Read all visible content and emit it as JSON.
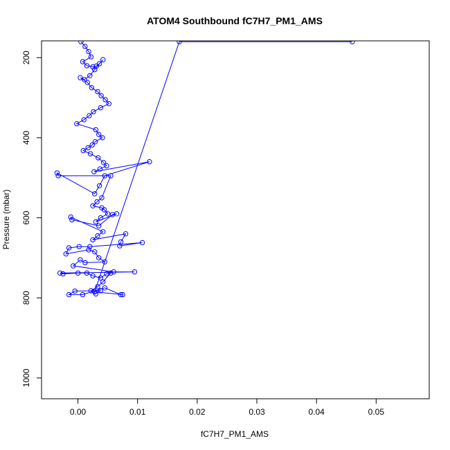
{
  "chart_data": {
    "type": "scatter",
    "title": "ATOM4 Southbound fC7H7_PM1_AMS",
    "xlabel": "fC7H7_PM1_AMS",
    "ylabel": "Pressure (mbar)",
    "xlim": [
      -0.0061,
      0.0589
    ],
    "ylim": [
      1052,
      158
    ],
    "y_reversed": true,
    "x_ticks": [
      0.0,
      0.01,
      0.02,
      0.03,
      0.04,
      0.05
    ],
    "x_tick_labels": [
      "0.00",
      "0.01",
      "0.02",
      "0.03",
      "0.04",
      "0.05"
    ],
    "y_ticks": [
      200,
      400,
      600,
      800,
      1000
    ],
    "y_tick_labels": [
      "200",
      "400",
      "600",
      "800",
      "1000"
    ],
    "grid": false,
    "marker": "open-circle",
    "connected": true,
    "series_color": "#0000ff",
    "series": [
      {
        "x": [
          0.0005,
          0.0012,
          0.0018,
          0.0022,
          0.0008,
          0.0015,
          0.0025,
          0.0031,
          0.0036,
          0.0042,
          0.0028,
          0.002,
          0.0011,
          0.0004,
          0.0016,
          0.0023,
          0.0033,
          0.0039,
          0.0046,
          0.0052,
          0.0038,
          0.0026,
          0.0019,
          0.001,
          -0.0002,
          0.003,
          0.0035,
          0.0041,
          0.0029,
          0.0024,
          0.0017,
          0.0009,
          0.0021,
          0.0034,
          0.0043,
          0.0048,
          0.0037,
          0.0027,
          0.012,
          0.0045,
          0.0036,
          0.0028,
          -0.0035,
          -0.0033,
          0.0055,
          0.004,
          0.0032,
          0.0025,
          0.004,
          0.0044,
          0.005,
          0.0038,
          0.003,
          0.0065,
          0.0058,
          0.0035,
          -0.001,
          -0.0012,
          0.0042,
          0.0033,
          0.0025,
          0.008,
          0.0072,
          0.007,
          0.0108,
          0.002,
          0.0002,
          -0.0015,
          -0.002,
          0.0018,
          0.0028,
          0.0035,
          0.0045,
          0.0012,
          0.0004,
          -0.0008,
          0.006,
          0.0095,
          -0.003,
          -0.0025,
          0.0,
          0.0015,
          0.0025,
          0.0038,
          0.0048,
          0.0055,
          0.0042,
          0.0033,
          0.0022,
          0.003,
          0.0038,
          -0.0005,
          -0.0015,
          0.0008,
          0.0045,
          0.0072,
          0.0075,
          0.0028,
          0.017,
          0.046
        ],
        "y": [
          160,
          172,
          185,
          198,
          210,
          220,
          223,
          221,
          215,
          205,
          230,
          245,
          255,
          250,
          262,
          275,
          285,
          295,
          305,
          315,
          325,
          335,
          345,
          355,
          365,
          380,
          392,
          400,
          410,
          418,
          425,
          432,
          440,
          450,
          462,
          470,
          478,
          485,
          460,
          495,
          520,
          540,
          488,
          495,
          495,
          550,
          560,
          570,
          575,
          580,
          590,
          600,
          610,
          590,
          592,
          620,
          605,
          598,
          635,
          645,
          655,
          640,
          660,
          670,
          662,
          672,
          672,
          675,
          690,
          680,
          685,
          700,
          710,
          712,
          705,
          720,
          735,
          735,
          738,
          740,
          738,
          738,
          745,
          750,
          740,
          738,
          760,
          772,
          782,
          790,
          782,
          783,
          792,
          792,
          775,
          792,
          792,
          785,
          160,
          160
        ]
      }
    ]
  }
}
